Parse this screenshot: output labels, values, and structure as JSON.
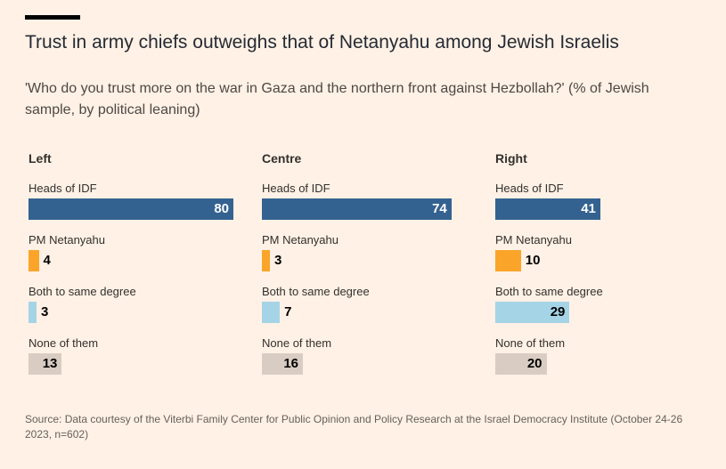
{
  "header": {
    "title": "Trust in army chiefs outweighs that of Netanyahu among Jewish Israelis",
    "subtitle": "'Who do you trust more on the war in Gaza and the northern front against Hezbollah?' (% of Jewish sample, by political leaning)"
  },
  "chart_data": {
    "type": "bar",
    "orientation": "horizontal",
    "title": "Trust in army chiefs outweighs that of Netanyahu among Jewish Israelis",
    "subtitle": "'Who do you trust more on the war in Gaza and the northern front against Hezbollah?' (% of Jewish sample, by political leaning)",
    "unit": "% of Jewish sample",
    "xlim": [
      0,
      80
    ],
    "categories": [
      "Heads of IDF",
      "PM Netanyahu",
      "Both to same degree",
      "None of them"
    ],
    "colors": [
      "#346290",
      "#FBA42A",
      "#A5D4E6",
      "#D9CDC3"
    ],
    "value_text_colors": [
      "#FFFFFF",
      "#000000",
      "#000000",
      "#000000"
    ],
    "panels": [
      {
        "name": "Left",
        "values": [
          80,
          4,
          3,
          13
        ]
      },
      {
        "name": "Centre",
        "values": [
          74,
          3,
          7,
          16
        ]
      },
      {
        "name": "Right",
        "values": [
          41,
          10,
          29,
          20
        ]
      }
    ]
  },
  "footer": {
    "source": "Source: Data courtesy of the Viterbi Family Center for Public Opinion and Policy Research at the Israel Democracy Institute (October 24-26 2023, n=602)"
  }
}
